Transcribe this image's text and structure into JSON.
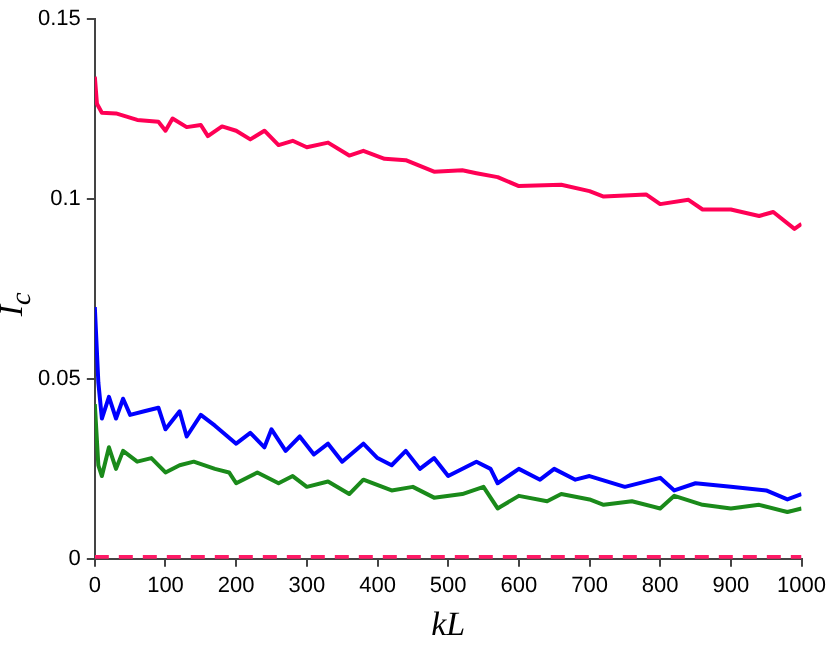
{
  "chart_data": {
    "type": "line",
    "xlabel": "kL",
    "ylabel": "I$_{c}$",
    "xlim": [
      0,
      1000
    ],
    "ylim": [
      0,
      0.15
    ],
    "xticks": [
      0,
      100,
      200,
      300,
      400,
      500,
      600,
      700,
      800,
      900,
      1000
    ],
    "yticks": [
      0,
      0.05,
      0.1,
      0.15
    ],
    "grid": false,
    "legend": false,
    "marker": "none",
    "series": [
      {
        "color": "#ff0055",
        "line_style": "solid",
        "x": [
          0,
          3,
          10,
          30,
          60,
          90,
          100,
          110,
          130,
          150,
          160,
          180,
          200,
          220,
          240,
          260,
          280,
          300,
          330,
          360,
          380,
          410,
          440,
          480,
          520,
          540,
          570,
          600,
          660,
          700,
          720,
          780,
          800,
          840,
          860,
          900,
          940,
          960,
          990,
          1000
        ],
        "values": [
          0.134,
          0.1265,
          0.124,
          0.1238,
          0.122,
          0.1215,
          0.119,
          0.1224,
          0.12,
          0.1206,
          0.1175,
          0.1202,
          0.119,
          0.1166,
          0.119,
          0.115,
          0.1162,
          0.1144,
          0.1157,
          0.1121,
          0.1134,
          0.1112,
          0.1108,
          0.1076,
          0.108,
          0.1072,
          0.1061,
          0.1036,
          0.104,
          0.1022,
          0.1007,
          0.1013,
          0.0986,
          0.0998,
          0.0971,
          0.0971,
          0.0953,
          0.0964,
          0.0917,
          0.0931
        ]
      },
      {
        "color": "#0000ff",
        "line_style": "solid",
        "x": [
          0,
          5,
          10,
          20,
          30,
          40,
          50,
          70,
          90,
          100,
          120,
          130,
          150,
          170,
          200,
          220,
          240,
          250,
          270,
          290,
          310,
          330,
          350,
          380,
          400,
          420,
          440,
          460,
          480,
          500,
          540,
          560,
          570,
          600,
          630,
          650,
          680,
          700,
          750,
          800,
          820,
          850,
          900,
          950,
          980,
          1000
        ],
        "values": [
          0.07,
          0.049,
          0.039,
          0.045,
          0.039,
          0.0445,
          0.04,
          0.041,
          0.042,
          0.036,
          0.041,
          0.034,
          0.04,
          0.037,
          0.032,
          0.035,
          0.031,
          0.036,
          0.03,
          0.034,
          0.029,
          0.032,
          0.027,
          0.032,
          0.028,
          0.026,
          0.03,
          0.025,
          0.028,
          0.023,
          0.027,
          0.025,
          0.021,
          0.025,
          0.022,
          0.025,
          0.022,
          0.023,
          0.02,
          0.0225,
          0.019,
          0.021,
          0.02,
          0.019,
          0.0165,
          0.018
        ]
      },
      {
        "color": "#1a8a1a",
        "line_style": "solid",
        "x": [
          0,
          5,
          10,
          20,
          30,
          40,
          60,
          80,
          100,
          120,
          140,
          170,
          190,
          200,
          230,
          260,
          280,
          300,
          330,
          360,
          380,
          420,
          450,
          480,
          520,
          550,
          570,
          600,
          640,
          660,
          700,
          720,
          760,
          800,
          820,
          860,
          900,
          940,
          980,
          1000
        ],
        "values": [
          0.043,
          0.026,
          0.023,
          0.031,
          0.025,
          0.03,
          0.027,
          0.028,
          0.024,
          0.026,
          0.027,
          0.025,
          0.024,
          0.021,
          0.024,
          0.021,
          0.023,
          0.02,
          0.0215,
          0.018,
          0.022,
          0.019,
          0.02,
          0.017,
          0.018,
          0.02,
          0.014,
          0.0175,
          0.016,
          0.018,
          0.0165,
          0.015,
          0.016,
          0.014,
          0.0175,
          0.015,
          0.014,
          0.015,
          0.013,
          0.014
        ]
      },
      {
        "color": "#ff1a66",
        "line_style": "dashed",
        "x": [
          0,
          1000
        ],
        "values": [
          0.0005,
          0.0005
        ]
      }
    ]
  }
}
